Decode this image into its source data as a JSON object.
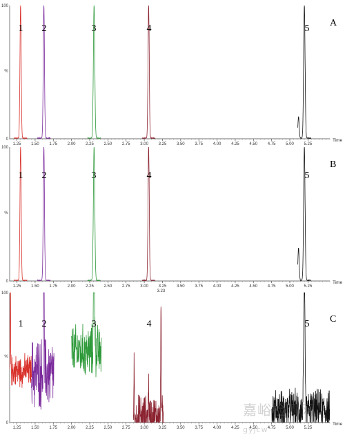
{
  "chart_data": [
    {
      "type": "line",
      "panel": "A",
      "xlim": [
        1.15,
        5.55
      ],
      "ylim": [
        0,
        100
      ],
      "x_ticks": [
        "1.25",
        "1.50",
        "1.75",
        "2.00",
        "2.25",
        "2.50",
        "2.75",
        "3.00",
        "3.25",
        "3.50",
        "3.75",
        "4.00",
        "4.25",
        "4.50",
        "4.75",
        "5.00",
        "5.25"
      ],
      "y_tick_top": "100",
      "y_tick_bottom": "0",
      "y_axis_label": "%",
      "x_unit_label": "Time",
      "series": [
        {
          "label": "1",
          "color": "#d9302a",
          "peaks": [
            {
              "x": 1.3,
              "y": 100,
              "w": 0.012
            }
          ]
        },
        {
          "label": "2",
          "color": "#7b2a9c",
          "peaks": [
            {
              "x": 1.62,
              "y": 100,
              "w": 0.012
            }
          ]
        },
        {
          "label": "3",
          "color": "#2e9a3a",
          "peaks": [
            {
              "x": 2.31,
              "y": 100,
              "w": 0.014
            }
          ]
        },
        {
          "label": "4",
          "color": "#8b2330",
          "peaks": [
            {
              "x": 3.06,
              "y": 100,
              "w": 0.012
            }
          ]
        },
        {
          "label": "5",
          "color": "#111111",
          "peaks": [
            {
              "x": 5.2,
              "y": 100,
              "w": 0.014
            },
            {
              "x": 5.12,
              "y": 16,
              "w": 0.012
            }
          ]
        }
      ]
    },
    {
      "type": "line",
      "panel": "B",
      "xlim": [
        1.15,
        5.55
      ],
      "ylim": [
        0,
        100
      ],
      "x_ticks": [
        "1.25",
        "1.50",
        "1.75",
        "2.00",
        "2.25",
        "2.50",
        "2.75",
        "3.00",
        "3.25",
        "3.50",
        "3.75",
        "4.00",
        "4.25",
        "4.50",
        "4.75",
        "5.00",
        "5.25"
      ],
      "y_tick_top": "100",
      "y_tick_bottom": "0",
      "y_axis_label": "%",
      "x_unit_label": "Time",
      "series": [
        {
          "label": "1",
          "color": "#d9302a",
          "peaks": [
            {
              "x": 1.3,
              "y": 100,
              "w": 0.012
            }
          ]
        },
        {
          "label": "2",
          "color": "#7b2a9c",
          "peaks": [
            {
              "x": 1.62,
              "y": 100,
              "w": 0.012
            }
          ]
        },
        {
          "label": "3",
          "color": "#2e9a3a",
          "peaks": [
            {
              "x": 2.31,
              "y": 100,
              "w": 0.014
            }
          ]
        },
        {
          "label": "4",
          "color": "#8b2330",
          "peaks": [
            {
              "x": 3.06,
              "y": 100,
              "w": 0.012
            }
          ]
        },
        {
          "label": "5",
          "color": "#111111",
          "peaks": [
            {
              "x": 5.2,
              "y": 100,
              "w": 0.014
            },
            {
              "x": 5.12,
              "y": 24,
              "w": 0.012
            }
          ]
        }
      ]
    },
    {
      "type": "line",
      "panel": "C",
      "xlim": [
        1.15,
        5.55
      ],
      "ylim": [
        0,
        100
      ],
      "x_ticks": [
        "1.25",
        "1.50",
        "1.75",
        "2.00",
        "2.25",
        "2.50",
        "2.75",
        "3.00",
        "3.25",
        "3.50",
        "3.75",
        "4.00",
        "4.25",
        "4.50",
        "4.75",
        "5.00",
        "5.25"
      ],
      "y_tick_top": "100",
      "y_tick_bottom": "0",
      "y_axis_label": "%",
      "x_unit_label": "Time",
      "peak_annotation": "3.23",
      "series": [
        {
          "label": "1",
          "color": "#d9302a",
          "noise": {
            "x0": 1.15,
            "x1": 1.45,
            "base": 40,
            "amp": 10
          },
          "peaks": [
            {
              "x": 1.16,
              "y": 80,
              "w": 0.004
            }
          ]
        },
        {
          "label": "2",
          "color": "#7b2a9c",
          "noise": {
            "x0": 1.45,
            "x1": 1.76,
            "base": 38,
            "amp": 22
          },
          "peaks": [
            {
              "x": 1.62,
              "y": 95,
              "w": 0.006
            }
          ]
        },
        {
          "label": "3",
          "color": "#2e9a3a",
          "noise": {
            "x0": 2.0,
            "x1": 2.41,
            "base": 55,
            "amp": 16
          },
          "peaks": [
            {
              "x": 2.31,
              "y": 96,
              "w": 0.01
            }
          ]
        },
        {
          "label": "4",
          "color": "#8b2330",
          "noise": {
            "x0": 2.85,
            "x1": 3.28,
            "base": 4,
            "amp": 14
          },
          "peaks": [
            {
              "x": 3.23,
              "y": 100,
              "w": 0.005
            },
            {
              "x": 2.86,
              "y": 58,
              "w": 0.003
            },
            {
              "x": 3.06,
              "y": 35,
              "w": 0.004
            }
          ]
        },
        {
          "label": "5",
          "color": "#111111",
          "noise": {
            "x0": 4.75,
            "x1": 5.55,
            "base": 10,
            "amp": 12
          },
          "peaks": [
            {
              "x": 5.2,
              "y": 100,
              "w": 0.012
            }
          ]
        }
      ]
    }
  ],
  "panel_letters": [
    "A",
    "B",
    "C"
  ],
  "watermark": "嘉峪检测网",
  "watermark_sub": "gyjcw"
}
